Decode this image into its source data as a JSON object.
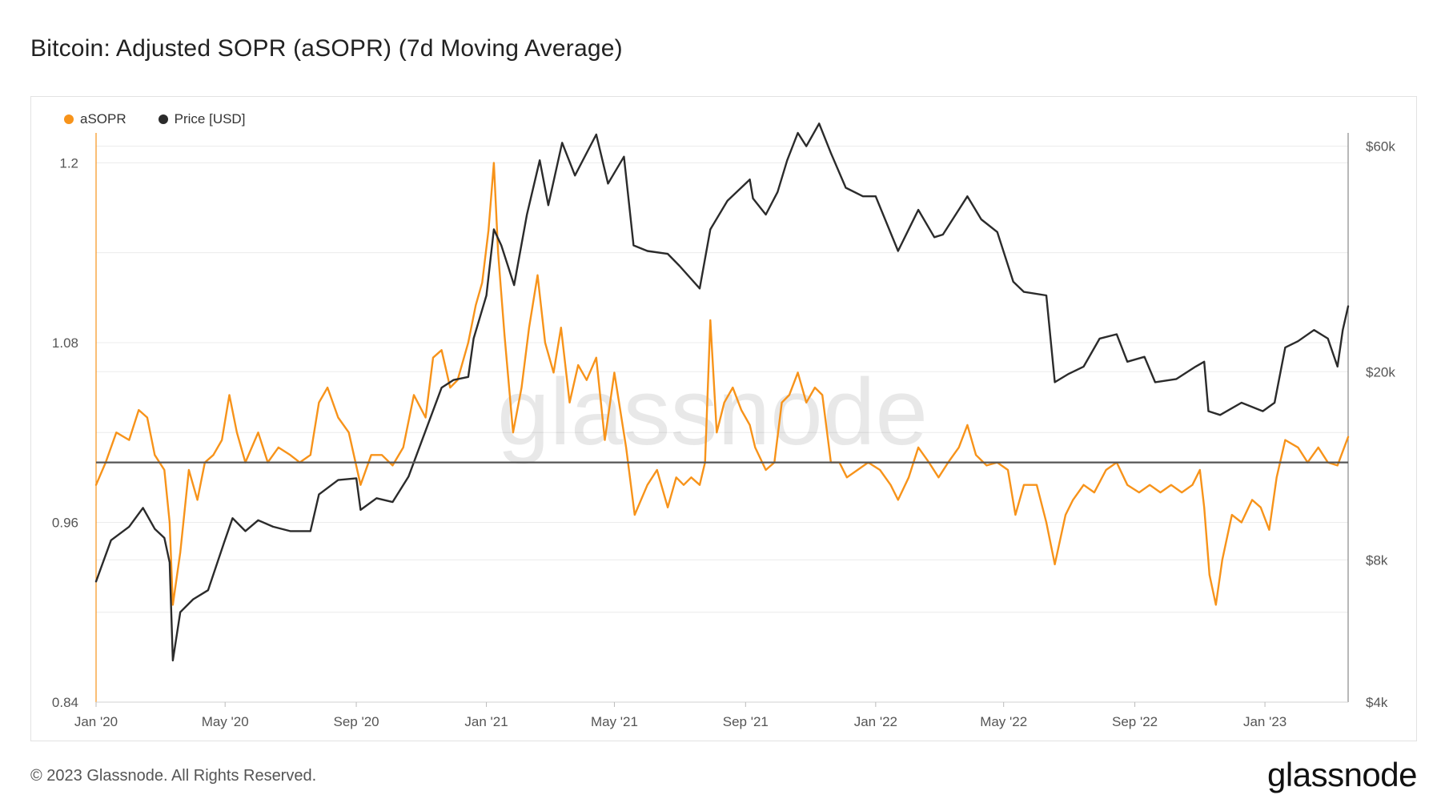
{
  "title": "Bitcoin: Adjusted SOPR (aSOPR) (7d Moving Average)",
  "footer": "© 2023 Glassnode. All Rights Reserved.",
  "brand": "glassnode",
  "watermark": "glassnode",
  "colors": {
    "asopr": "#F7931A",
    "price": "#2b2b2b",
    "baseline": "#555555",
    "grid": "#ececec"
  },
  "legend": [
    {
      "label": "aSOPR",
      "color": "#F7931A"
    },
    {
      "label": "Price [USD]",
      "color": "#2b2b2b"
    }
  ],
  "chart_data": {
    "type": "line",
    "title": "Bitcoin: Adjusted SOPR (aSOPR) (7d Moving Average)",
    "x_range": [
      "2020-01-01",
      "2023-03-20"
    ],
    "x_ticks": [
      {
        "label": "Jan '20",
        "date": "2020-01-01"
      },
      {
        "label": "May '20",
        "date": "2020-05-01"
      },
      {
        "label": "Sep '20",
        "date": "2020-09-01"
      },
      {
        "label": "Jan '21",
        "date": "2021-01-01"
      },
      {
        "label": "May '21",
        "date": "2021-05-01"
      },
      {
        "label": "Sep '21",
        "date": "2021-09-01"
      },
      {
        "label": "Jan '22",
        "date": "2022-01-01"
      },
      {
        "label": "May '22",
        "date": "2022-05-01"
      },
      {
        "label": "Sep '22",
        "date": "2022-09-01"
      },
      {
        "label": "Jan '23",
        "date": "2023-01-01"
      }
    ],
    "y_left": {
      "scale": "linear",
      "range": [
        0.84,
        1.22
      ],
      "ticks": [
        0.84,
        0.96,
        1.08,
        1.2
      ],
      "tick_labels": [
        "0.84",
        "0.96",
        "1.08",
        "1.2"
      ],
      "baseline": 1.0
    },
    "y_right": {
      "scale": "log",
      "range": [
        4000,
        64000
      ],
      "ticks": [
        4000,
        8000,
        20000,
        60000
      ],
      "tick_labels": [
        "$4k",
        "$8k",
        "$20k",
        "$60k"
      ]
    },
    "series": [
      {
        "name": "aSOPR",
        "axis": "left",
        "color": "#F7931A",
        "points": [
          [
            "2020-01-01",
            0.985
          ],
          [
            "2020-01-10",
            1.0
          ],
          [
            "2020-01-20",
            1.02
          ],
          [
            "2020-02-01",
            1.015
          ],
          [
            "2020-02-10",
            1.035
          ],
          [
            "2020-02-18",
            1.03
          ],
          [
            "2020-02-25",
            1.005
          ],
          [
            "2020-03-05",
            0.995
          ],
          [
            "2020-03-10",
            0.96
          ],
          [
            "2020-03-13",
            0.905
          ],
          [
            "2020-03-20",
            0.94
          ],
          [
            "2020-03-28",
            0.995
          ],
          [
            "2020-04-05",
            0.975
          ],
          [
            "2020-04-12",
            1.0
          ],
          [
            "2020-04-20",
            1.005
          ],
          [
            "2020-04-28",
            1.015
          ],
          [
            "2020-05-05",
            1.045
          ],
          [
            "2020-05-12",
            1.02
          ],
          [
            "2020-05-20",
            1.0
          ],
          [
            "2020-06-01",
            1.02
          ],
          [
            "2020-06-10",
            1.0
          ],
          [
            "2020-06-20",
            1.01
          ],
          [
            "2020-07-01",
            1.005
          ],
          [
            "2020-07-10",
            1.0
          ],
          [
            "2020-07-20",
            1.005
          ],
          [
            "2020-07-28",
            1.04
          ],
          [
            "2020-08-05",
            1.05
          ],
          [
            "2020-08-15",
            1.03
          ],
          [
            "2020-08-25",
            1.02
          ],
          [
            "2020-09-05",
            0.985
          ],
          [
            "2020-09-15",
            1.005
          ],
          [
            "2020-09-25",
            1.005
          ],
          [
            "2020-10-05",
            0.998
          ],
          [
            "2020-10-15",
            1.01
          ],
          [
            "2020-10-25",
            1.045
          ],
          [
            "2020-11-05",
            1.03
          ],
          [
            "2020-11-12",
            1.07
          ],
          [
            "2020-11-20",
            1.075
          ],
          [
            "2020-11-28",
            1.05
          ],
          [
            "2020-12-05",
            1.055
          ],
          [
            "2020-12-15",
            1.08
          ],
          [
            "2020-12-22",
            1.105
          ],
          [
            "2020-12-28",
            1.12
          ],
          [
            "2021-01-03",
            1.155
          ],
          [
            "2021-01-08",
            1.2
          ],
          [
            "2021-01-12",
            1.14
          ],
          [
            "2021-01-18",
            1.085
          ],
          [
            "2021-01-26",
            1.02
          ],
          [
            "2021-02-03",
            1.05
          ],
          [
            "2021-02-10",
            1.09
          ],
          [
            "2021-02-18",
            1.125
          ],
          [
            "2021-02-25",
            1.08
          ],
          [
            "2021-03-05",
            1.06
          ],
          [
            "2021-03-12",
            1.09
          ],
          [
            "2021-03-20",
            1.04
          ],
          [
            "2021-03-28",
            1.065
          ],
          [
            "2021-04-05",
            1.055
          ],
          [
            "2021-04-14",
            1.07
          ],
          [
            "2021-04-22",
            1.015
          ],
          [
            "2021-05-01",
            1.06
          ],
          [
            "2021-05-12",
            1.01
          ],
          [
            "2021-05-20",
            0.965
          ],
          [
            "2021-06-01",
            0.985
          ],
          [
            "2021-06-10",
            0.995
          ],
          [
            "2021-06-20",
            0.97
          ],
          [
            "2021-06-28",
            0.99
          ],
          [
            "2021-07-05",
            0.985
          ],
          [
            "2021-07-12",
            0.99
          ],
          [
            "2021-07-20",
            0.985
          ],
          [
            "2021-07-25",
            1.0
          ],
          [
            "2021-07-30",
            1.095
          ],
          [
            "2021-08-05",
            1.02
          ],
          [
            "2021-08-12",
            1.04
          ],
          [
            "2021-08-20",
            1.05
          ],
          [
            "2021-08-28",
            1.035
          ],
          [
            "2021-09-05",
            1.025
          ],
          [
            "2021-09-10",
            1.01
          ],
          [
            "2021-09-20",
            0.995
          ],
          [
            "2021-09-28",
            1.0
          ],
          [
            "2021-10-05",
            1.04
          ],
          [
            "2021-10-12",
            1.045
          ],
          [
            "2021-10-20",
            1.06
          ],
          [
            "2021-10-28",
            1.04
          ],
          [
            "2021-11-05",
            1.05
          ],
          [
            "2021-11-12",
            1.045
          ],
          [
            "2021-11-20",
            1.0
          ],
          [
            "2021-11-28",
            1.0
          ],
          [
            "2021-12-05",
            0.99
          ],
          [
            "2021-12-15",
            0.995
          ],
          [
            "2021-12-25",
            1.0
          ],
          [
            "2022-01-05",
            0.995
          ],
          [
            "2022-01-15",
            0.985
          ],
          [
            "2022-01-22",
            0.975
          ],
          [
            "2022-02-01",
            0.99
          ],
          [
            "2022-02-10",
            1.01
          ],
          [
            "2022-02-20",
            1.0
          ],
          [
            "2022-03-01",
            0.99
          ],
          [
            "2022-03-10",
            1.0
          ],
          [
            "2022-03-20",
            1.01
          ],
          [
            "2022-03-28",
            1.025
          ],
          [
            "2022-04-05",
            1.005
          ],
          [
            "2022-04-15",
            0.998
          ],
          [
            "2022-04-25",
            1.0
          ],
          [
            "2022-05-05",
            0.995
          ],
          [
            "2022-05-12",
            0.965
          ],
          [
            "2022-05-20",
            0.985
          ],
          [
            "2022-06-01",
            0.985
          ],
          [
            "2022-06-10",
            0.96
          ],
          [
            "2022-06-18",
            0.932
          ],
          [
            "2022-06-28",
            0.965
          ],
          [
            "2022-07-05",
            0.975
          ],
          [
            "2022-07-15",
            0.985
          ],
          [
            "2022-07-25",
            0.98
          ],
          [
            "2022-08-05",
            0.995
          ],
          [
            "2022-08-15",
            1.0
          ],
          [
            "2022-08-25",
            0.985
          ],
          [
            "2022-09-05",
            0.98
          ],
          [
            "2022-09-15",
            0.985
          ],
          [
            "2022-09-25",
            0.98
          ],
          [
            "2022-10-05",
            0.985
          ],
          [
            "2022-10-15",
            0.98
          ],
          [
            "2022-10-25",
            0.985
          ],
          [
            "2022-11-01",
            0.995
          ],
          [
            "2022-11-05",
            0.97
          ],
          [
            "2022-11-10",
            0.925
          ],
          [
            "2022-11-16",
            0.905
          ],
          [
            "2022-11-22",
            0.935
          ],
          [
            "2022-12-01",
            0.965
          ],
          [
            "2022-12-10",
            0.96
          ],
          [
            "2022-12-20",
            0.975
          ],
          [
            "2022-12-28",
            0.97
          ],
          [
            "2023-01-05",
            0.955
          ],
          [
            "2023-01-12",
            0.99
          ],
          [
            "2023-01-20",
            1.015
          ],
          [
            "2023-02-01",
            1.01
          ],
          [
            "2023-02-10",
            1.0
          ],
          [
            "2023-02-20",
            1.01
          ],
          [
            "2023-03-01",
            1.0
          ],
          [
            "2023-03-10",
            0.998
          ],
          [
            "2023-03-20",
            1.017
          ]
        ]
      },
      {
        "name": "Price [USD]",
        "axis": "right",
        "color": "#2b2b2b",
        "points": [
          [
            "2020-01-01",
            7200
          ],
          [
            "2020-01-15",
            8800
          ],
          [
            "2020-02-01",
            9400
          ],
          [
            "2020-02-14",
            10300
          ],
          [
            "2020-02-25",
            9300
          ],
          [
            "2020-03-05",
            8900
          ],
          [
            "2020-03-10",
            7900
          ],
          [
            "2020-03-13",
            4900
          ],
          [
            "2020-03-20",
            6200
          ],
          [
            "2020-04-01",
            6600
          ],
          [
            "2020-04-15",
            6900
          ],
          [
            "2020-04-30",
            8700
          ],
          [
            "2020-05-08",
            9800
          ],
          [
            "2020-05-20",
            9200
          ],
          [
            "2020-06-01",
            9700
          ],
          [
            "2020-06-15",
            9400
          ],
          [
            "2020-07-01",
            9200
          ],
          [
            "2020-07-20",
            9200
          ],
          [
            "2020-07-28",
            11000
          ],
          [
            "2020-08-15",
            11800
          ],
          [
            "2020-09-01",
            11900
          ],
          [
            "2020-09-05",
            10200
          ],
          [
            "2020-09-20",
            10800
          ],
          [
            "2020-10-05",
            10600
          ],
          [
            "2020-10-20",
            12000
          ],
          [
            "2020-11-05",
            15000
          ],
          [
            "2020-11-20",
            18500
          ],
          [
            "2020-12-01",
            19200
          ],
          [
            "2020-12-15",
            19500
          ],
          [
            "2020-12-20",
            23500
          ],
          [
            "2021-01-01",
            29000
          ],
          [
            "2021-01-08",
            40000
          ],
          [
            "2021-01-15",
            37000
          ],
          [
            "2021-01-27",
            30500
          ],
          [
            "2021-02-08",
            43000
          ],
          [
            "2021-02-20",
            56000
          ],
          [
            "2021-02-28",
            45000
          ],
          [
            "2021-03-13",
            61000
          ],
          [
            "2021-03-25",
            52000
          ],
          [
            "2021-04-14",
            63500
          ],
          [
            "2021-04-25",
            50000
          ],
          [
            "2021-05-10",
            57000
          ],
          [
            "2021-05-19",
            37000
          ],
          [
            "2021-06-01",
            36000
          ],
          [
            "2021-06-20",
            35500
          ],
          [
            "2021-07-01",
            33500
          ],
          [
            "2021-07-20",
            30000
          ],
          [
            "2021-07-30",
            40000
          ],
          [
            "2021-08-15",
            46000
          ],
          [
            "2021-09-05",
            51000
          ],
          [
            "2021-09-08",
            46500
          ],
          [
            "2021-09-20",
            43000
          ],
          [
            "2021-10-01",
            48000
          ],
          [
            "2021-10-10",
            56000
          ],
          [
            "2021-10-20",
            64000
          ],
          [
            "2021-10-28",
            60000
          ],
          [
            "2021-11-09",
            67000
          ],
          [
            "2021-11-20",
            58000
          ],
          [
            "2021-12-04",
            49000
          ],
          [
            "2021-12-20",
            47000
          ],
          [
            "2022-01-01",
            47000
          ],
          [
            "2022-01-22",
            36000
          ],
          [
            "2022-02-10",
            44000
          ],
          [
            "2022-02-25",
            38500
          ],
          [
            "2022-03-05",
            39000
          ],
          [
            "2022-03-28",
            47000
          ],
          [
            "2022-04-10",
            42000
          ],
          [
            "2022-04-25",
            39500
          ],
          [
            "2022-05-10",
            31000
          ],
          [
            "2022-05-20",
            29500
          ],
          [
            "2022-06-10",
            29000
          ],
          [
            "2022-06-18",
            19000
          ],
          [
            "2022-07-01",
            19800
          ],
          [
            "2022-07-15",
            20500
          ],
          [
            "2022-07-30",
            23500
          ],
          [
            "2022-08-15",
            24000
          ],
          [
            "2022-08-25",
            21000
          ],
          [
            "2022-09-10",
            21500
          ],
          [
            "2022-09-20",
            19000
          ],
          [
            "2022-10-10",
            19300
          ],
          [
            "2022-10-28",
            20500
          ],
          [
            "2022-11-05",
            21000
          ],
          [
            "2022-11-09",
            16500
          ],
          [
            "2022-11-20",
            16200
          ],
          [
            "2022-12-10",
            17200
          ],
          [
            "2022-12-30",
            16500
          ],
          [
            "2023-01-10",
            17200
          ],
          [
            "2023-01-20",
            22500
          ],
          [
            "2023-02-01",
            23200
          ],
          [
            "2023-02-16",
            24500
          ],
          [
            "2023-03-01",
            23500
          ],
          [
            "2023-03-10",
            20500
          ],
          [
            "2023-03-15",
            24500
          ],
          [
            "2023-03-20",
            27500
          ]
        ]
      }
    ]
  }
}
